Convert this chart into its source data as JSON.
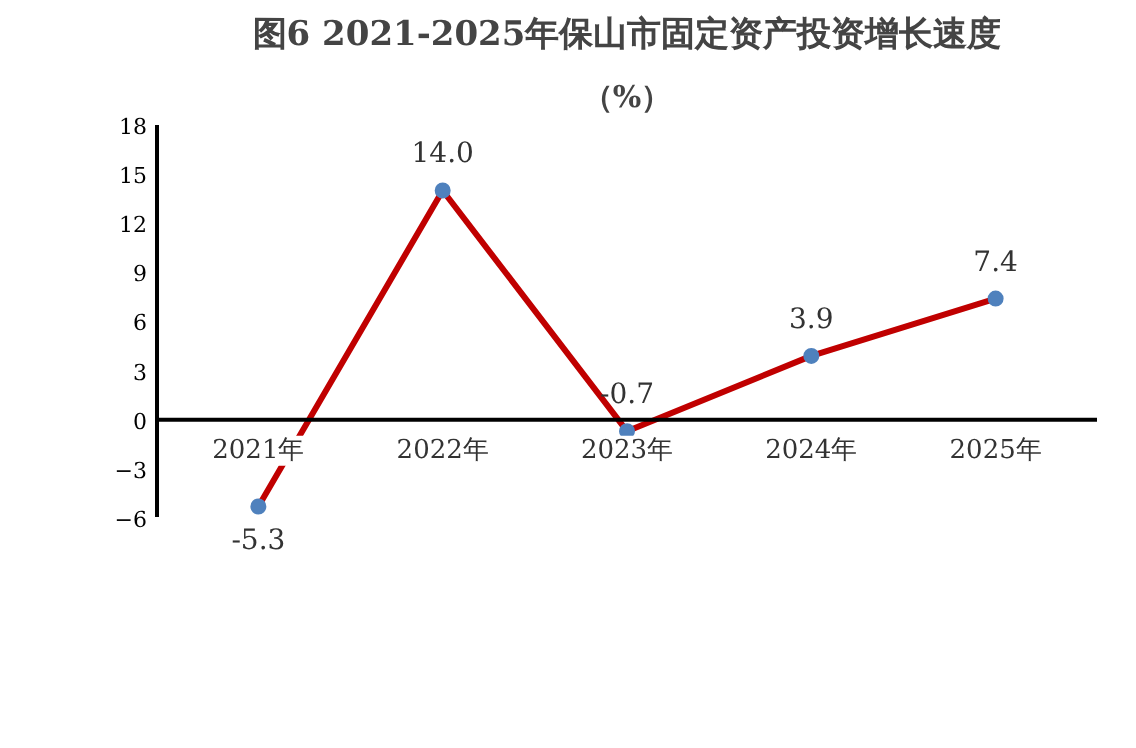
{
  "chart_data": {
    "type": "line",
    "title": "图6 2021-2025年保山市固定资产投资增长速度",
    "subtitle": "（%）",
    "categories": [
      "2021年",
      "2022年",
      "2023年",
      "2024年",
      "2025年"
    ],
    "series": [
      {
        "color": "#c00000",
        "values": [
          -5.3,
          14.0,
          -0.7,
          3.9,
          7.4
        ],
        "value_labels": [
          "-5.3",
          "14.0",
          "-0.7",
          "3.9",
          "7.4"
        ]
      }
    ],
    "ylim": [
      -6,
      18
    ],
    "yticks": [
      -6,
      -3,
      0,
      3,
      6,
      9,
      12,
      15,
      18
    ],
    "marker": "circle",
    "grid": false,
    "line_style": "solid"
  }
}
